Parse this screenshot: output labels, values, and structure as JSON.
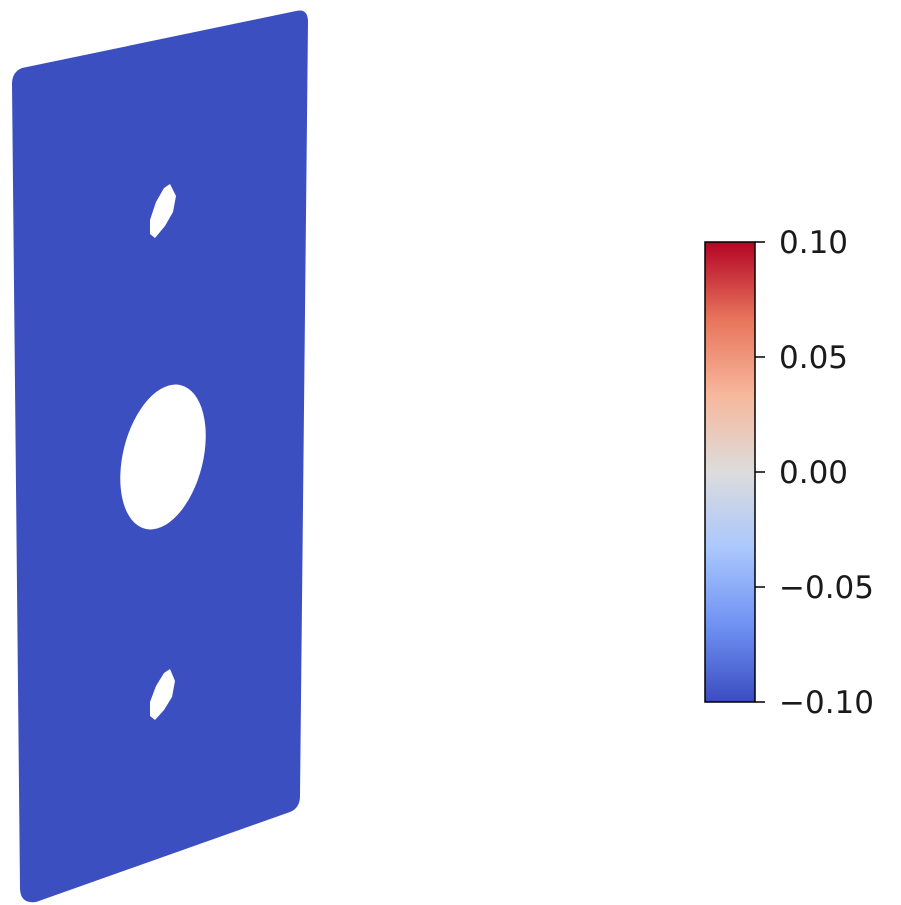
{
  "plate": {
    "fill_color": "#3c4fc0",
    "hole_color": "#ffffff",
    "holes": [
      "small-upper-hole",
      "large-center-hole",
      "small-lower-hole"
    ]
  },
  "colorbar": {
    "colormap": "coolwarm",
    "range": [
      -0.1,
      0.1
    ],
    "stops": [
      "#3b4cc0",
      "#6f92f3",
      "#aac7fd",
      "#dddcdc",
      "#f7b89c",
      "#e7745b",
      "#b40426"
    ],
    "ticks": [
      {
        "value": 0.1,
        "label": "0.10"
      },
      {
        "value": 0.05,
        "label": "0.05"
      },
      {
        "value": 0.0,
        "label": "0.00"
      },
      {
        "value": -0.05,
        "label": "−0.05"
      },
      {
        "value": -0.1,
        "label": "−0.10"
      }
    ]
  }
}
